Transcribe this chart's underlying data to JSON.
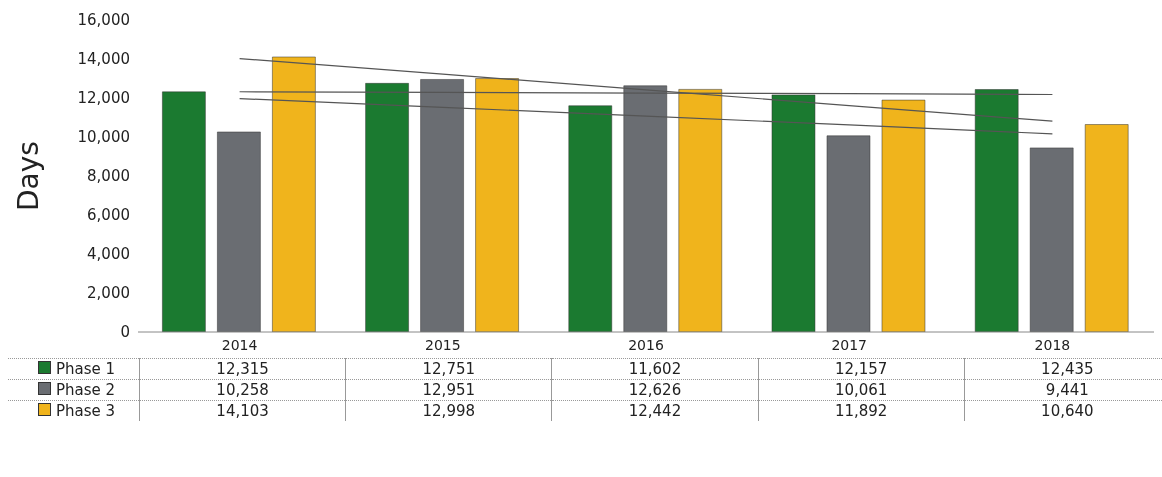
{
  "chart_data": {
    "type": "bar",
    "ylabel": "Days",
    "categories": [
      "2014",
      "2015",
      "2016",
      "2017",
      "2018"
    ],
    "series": [
      {
        "name": "Phase 1",
        "color": "#1b7a30",
        "values": [
          12315,
          12751,
          11602,
          12157,
          12435
        ],
        "value_labels": [
          "12,315",
          "12,751",
          "11,602",
          "12,157",
          "12,435"
        ]
      },
      {
        "name": "Phase 2",
        "color": "#6a6d72",
        "values": [
          10258,
          12951,
          12626,
          10061,
          9441
        ],
        "value_labels": [
          "10,258",
          "12,951",
          "12,626",
          "10,061",
          "9,441"
        ]
      },
      {
        "name": "Phase 3",
        "color": "#f0b41c",
        "values": [
          14103,
          12998,
          12442,
          11892,
          10640
        ],
        "value_labels": [
          "14,103",
          "12,998",
          "12,442",
          "11,892",
          "10,640"
        ]
      },
      {
        "type": "line",
        "color": "#555555",
        "values": [
          12320,
          12290,
          12250,
          12220,
          12180
        ]
      },
      {
        "type": "line",
        "color": "#555555",
        "values": [
          11970,
          11520,
          11070,
          10620,
          10160
        ]
      },
      {
        "type": "line",
        "color": "#555555",
        "values": [
          14020,
          13220,
          12420,
          11610,
          10810
        ]
      }
    ],
    "ylim": [
      0,
      16000
    ],
    "yticks": [
      {
        "value": 0,
        "label": "0"
      },
      {
        "value": 2000,
        "label": "2,000"
      },
      {
        "value": 4000,
        "label": "4,000"
      },
      {
        "value": 6000,
        "label": "6,000"
      },
      {
        "value": 8000,
        "label": "8,000"
      },
      {
        "value": 10000,
        "label": "10,000"
      },
      {
        "value": 12000,
        "label": "12,000"
      },
      {
        "value": 14000,
        "label": "14,000"
      },
      {
        "value": 16000,
        "label": "16,000"
      }
    ],
    "legend": "bottom left"
  }
}
